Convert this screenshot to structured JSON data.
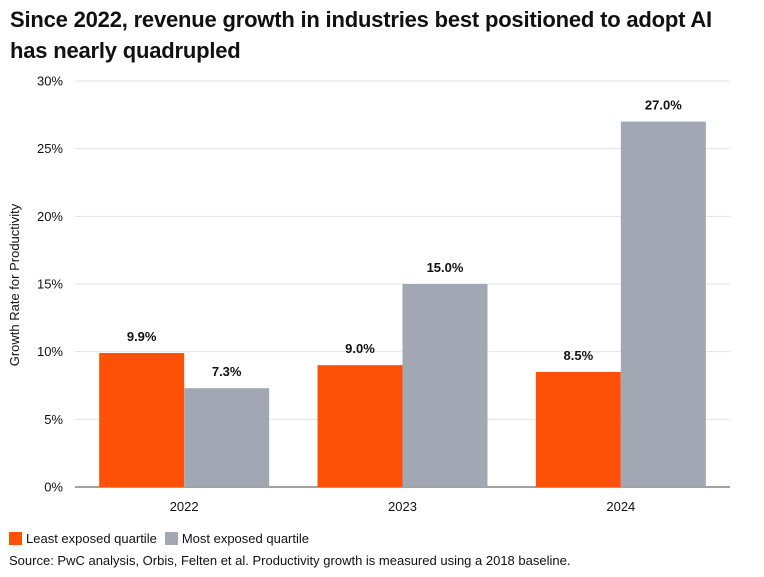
{
  "chart_data": {
    "type": "bar",
    "title": "Since 2022, revenue growth in industries best positioned to adopt AI has nearly quadrupled",
    "xlabel": "",
    "ylabel": "Growth Rate for Productivity",
    "categories": [
      "2022",
      "2023",
      "2024"
    ],
    "series": [
      {
        "name": "Least exposed quartile",
        "color": "#FD5108",
        "values": [
          9.9,
          9.0,
          8.5
        ],
        "labels": [
          "9.9%",
          "9.0%",
          "8.5%"
        ]
      },
      {
        "name": "Most exposed quartile",
        "color": "#A1A8B3",
        "values": [
          7.3,
          15.0,
          27.0
        ],
        "labels": [
          "7.3%",
          "15.0%",
          "27.0%"
        ]
      }
    ],
    "ylim": [
      0,
      30
    ],
    "yticks": [
      0,
      5,
      10,
      15,
      20,
      25,
      30
    ],
    "ytick_labels": [
      "0%",
      "5%",
      "10%",
      "15%",
      "20%",
      "25%",
      "30%"
    ],
    "grid": true,
    "legend_position": "bottom-left"
  },
  "footer": {
    "source": "Source: PwC analysis, Orbis, Felten et al. Productivity growth is measured using a 2018 baseline."
  }
}
